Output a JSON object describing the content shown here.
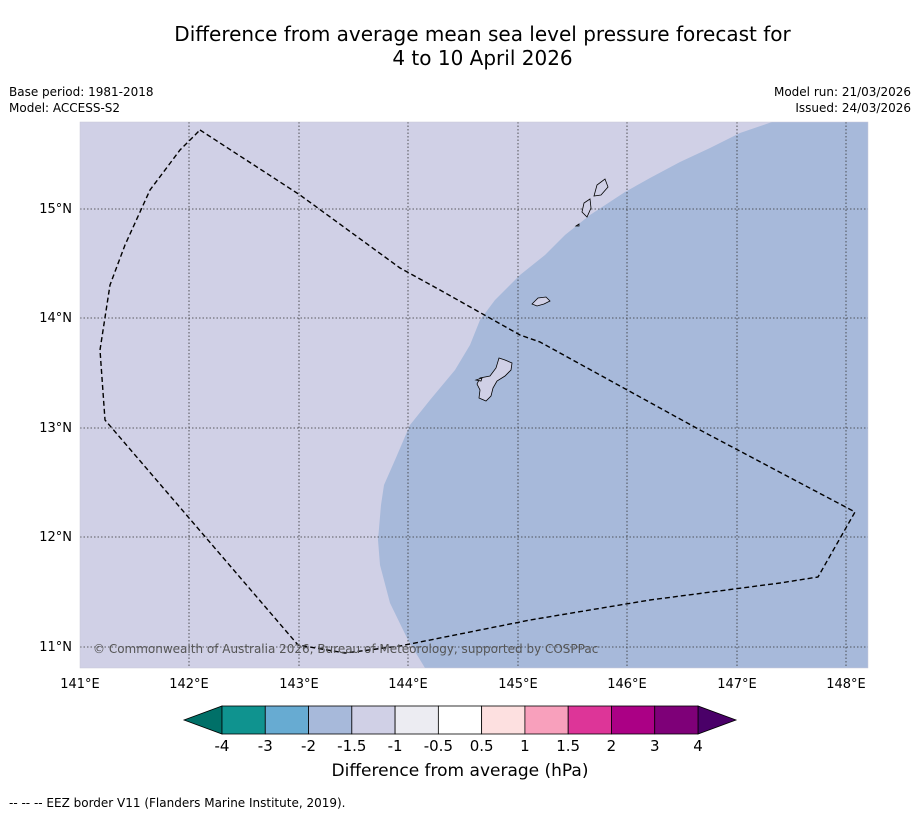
{
  "title_line1": "Difference from average mean sea level pressure forecast for",
  "title_line2": "4 to 10 April 2026",
  "meta": {
    "base_period": "Base period: 1981-2018",
    "model": "Model: ACCESS-S2",
    "model_run": "Model run: 21/03/2026",
    "issued": "Issued: 24/03/2026"
  },
  "copyright": "© Commonwealth of Australia 2026, Bureau of Meteorology, supported by COSPPac",
  "lon_labels": [
    "141°E",
    "142°E",
    "143°E",
    "144°E",
    "145°E",
    "146°E",
    "147°E",
    "148°E"
  ],
  "lat_labels": [
    "15°N",
    "14°N",
    "13°N",
    "12°N",
    "11°N"
  ],
  "colorbar": {
    "title": "Difference from average (hPa)",
    "tick_labels": [
      "-4",
      "-3",
      "-2",
      "-1.5",
      "-1",
      "-0.5",
      "0.5",
      "1",
      "1.5",
      "2",
      "3",
      "4"
    ],
    "colors": [
      "#0f938f",
      "#67abd2",
      "#a7b9da",
      "#d0d0e6",
      "#ececf2",
      "#ffffff",
      "#fde0e0",
      "#f8a0bc",
      "#dd3598",
      "#ab0085",
      "#7e0078"
    ],
    "low_extend_color": "#007068",
    "high_extend_color": "#4a0068"
  },
  "map_colors": {
    "range_minus1_5_to_minus1": "#d0d0e6",
    "range_minus2_to_minus1_5": "#a7b9da"
  },
  "footer": "--  --  -- EEZ border V11 (Flanders Marine Institute, 2019)."
}
